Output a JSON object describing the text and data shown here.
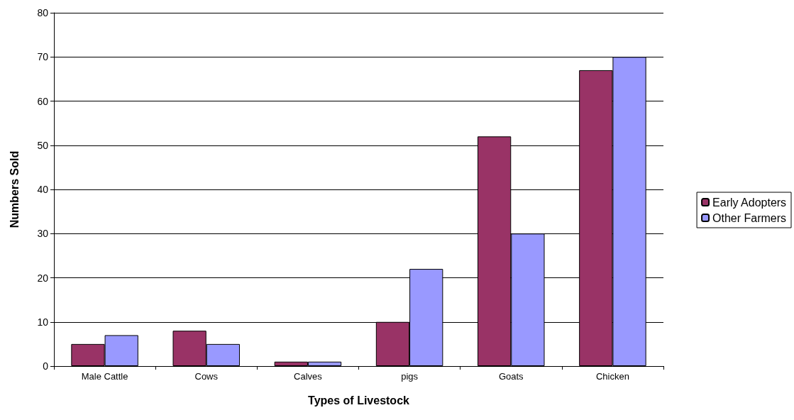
{
  "chart_data": {
    "type": "bar",
    "xlabel": "Types of Livestock",
    "ylabel": "Numbers Sold",
    "categories": [
      "Male Cattle",
      "Cows",
      "Calves",
      "pigs",
      "Goats",
      "Chicken"
    ],
    "series": [
      {
        "name": "Early Adopters",
        "color": "#993366",
        "values": [
          5,
          8,
          1,
          10,
          52,
          67
        ]
      },
      {
        "name": "Other Farmers",
        "color": "#9999ff",
        "values": [
          7,
          5,
          1,
          22,
          30,
          70
        ]
      }
    ],
    "ylim": [
      0,
      80
    ],
    "yticks": [
      0,
      10,
      20,
      30,
      40,
      50,
      60,
      70,
      80
    ],
    "grid": "y",
    "legend": "right"
  }
}
